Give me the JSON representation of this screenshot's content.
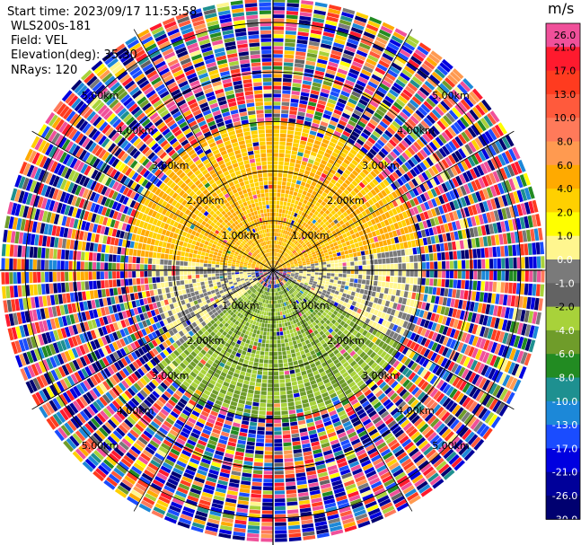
{
  "header": {
    "start_time": "Start time: 2023/09/17 11:53:58",
    "instrument": "WLS200s-181",
    "field": "Field: VEL",
    "elevation": "Elevation(deg): 35.30",
    "nrays": "NRays: 120"
  },
  "colorbar": {
    "unit": "m/s",
    "ticks": [
      "26.0",
      "21.0",
      "17.0",
      "13.0",
      "10.0",
      "8.0",
      "6.0",
      "4.0",
      "2.0",
      "1.0",
      "0.0",
      "-1.0",
      "-2.0",
      "-4.0",
      "-6.0",
      "-8.0",
      "-10.0",
      "-13.0",
      "-17.0",
      "-21.0",
      "-26.0",
      "-30.0"
    ],
    "colors": [
      "#f0509a",
      "#ff1a2e",
      "#ff3b1f",
      "#ff5a3c",
      "#ff7a5a",
      "#ff9a50",
      "#ffaa00",
      "#ffd000",
      "#ffff00",
      "#fff68f",
      "#7a7a7a",
      "#636363",
      "#a8d23a",
      "#6f9c2a",
      "#228b22",
      "#1e9090",
      "#1c88d8",
      "#1a4cff",
      "#0000e0",
      "#00009a",
      "#000070"
    ]
  },
  "chart_data": {
    "type": "ppi_scan",
    "field": "VEL",
    "units": "m/s",
    "elevation_deg": 35.3,
    "nrays": 120,
    "range_rings_km": [
      1.0,
      2.0,
      3.0,
      4.0,
      5.0
    ],
    "range_ring_labels": [
      "1.00km",
      "2.00km",
      "3.00km",
      "4.00km",
      "5.00km"
    ],
    "velocity_regions": [
      {
        "azimuth_deg": [
          275,
          80
        ],
        "range_km": [
          0,
          3.0
        ],
        "velocity_ms": [
          2.0,
          6.0
        ],
        "description": "north: yellow/orange, positive"
      },
      {
        "azimuth_deg": [
          60,
          120
        ],
        "range_km": [
          0.3,
          3.0
        ],
        "velocity_ms": [
          -1.0,
          1.0
        ],
        "description": "east: gray, near zero"
      },
      {
        "azimuth_deg": [
          120,
          230
        ],
        "range_km": [
          0.3,
          3.0
        ],
        "velocity_ms": [
          -6.0,
          -2.0
        ],
        "description": "south: green, negative"
      },
      {
        "azimuth_deg": [
          230,
          275
        ],
        "range_km": [
          0.3,
          2.4
        ],
        "velocity_ms": [
          -1.0,
          1.0
        ],
        "description": "west: gray, near zero"
      },
      {
        "azimuth_deg": [
          0,
          360
        ],
        "range_km": [
          3.0,
          5.6
        ],
        "velocity_ms": [
          -30.0,
          26.0
        ],
        "description": "outer noise, random velocities"
      }
    ]
  }
}
